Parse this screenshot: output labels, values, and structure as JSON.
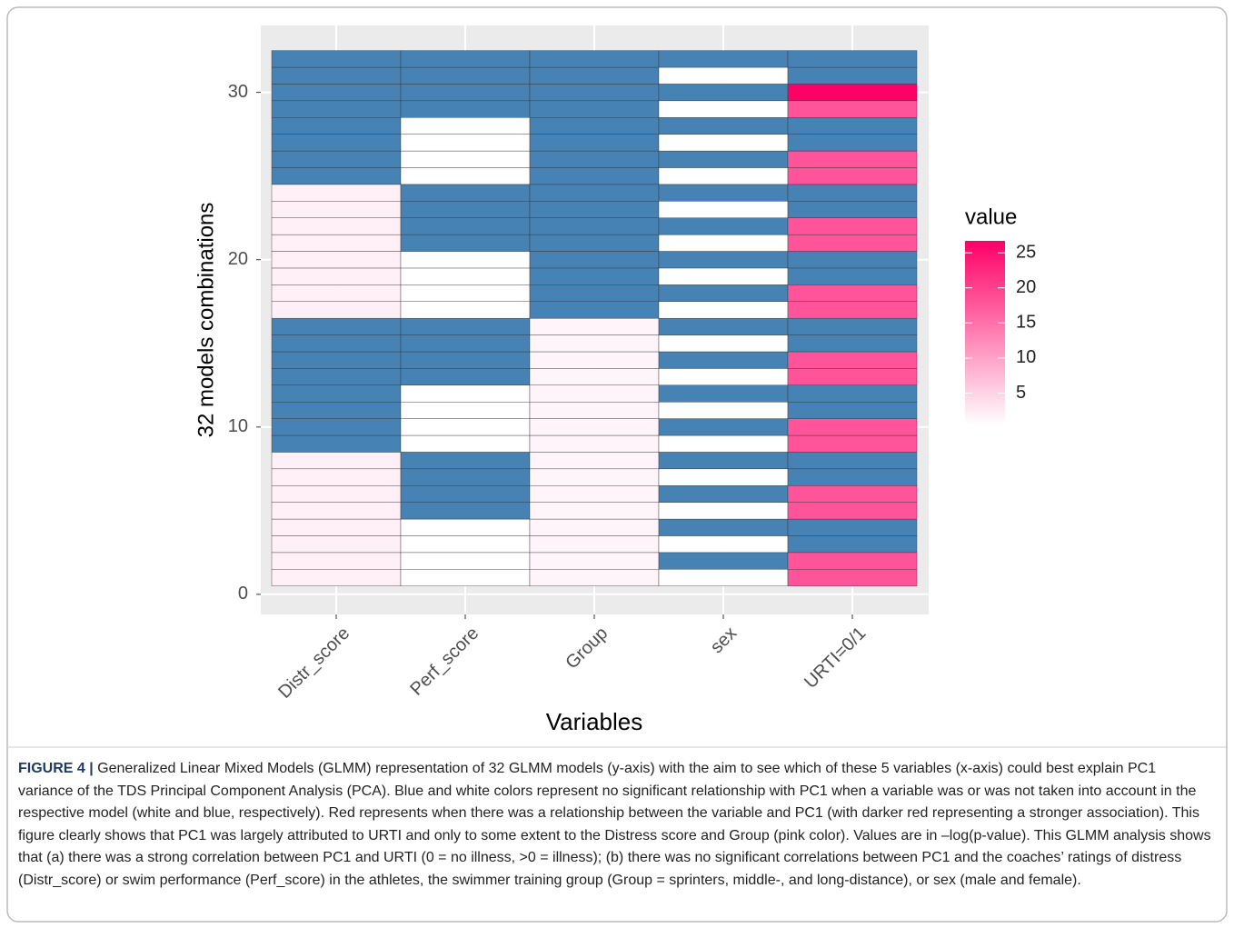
{
  "chart_data": {
    "type": "heatmap",
    "xlabel": "Variables",
    "ylabel": "32 models combinations",
    "categories": [
      "Distr_score",
      "Perf_score",
      "Group",
      "sex",
      "URTI=0/1"
    ],
    "y": [
      1,
      2,
      3,
      4,
      5,
      6,
      7,
      8,
      9,
      10,
      11,
      12,
      13,
      14,
      15,
      16,
      17,
      18,
      19,
      20,
      21,
      22,
      23,
      24,
      25,
      26,
      27,
      28,
      29,
      30,
      31,
      32
    ],
    "values": [
      [
        2,
        0.4,
        1.5,
        0.4,
        18
      ],
      [
        2,
        0.4,
        1.5,
        null,
        18
      ],
      [
        2,
        0.4,
        1.5,
        0.4,
        null
      ],
      [
        2,
        0.4,
        1.5,
        null,
        null
      ],
      [
        2,
        null,
        1.5,
        0.4,
        18
      ],
      [
        2,
        null,
        1.5,
        null,
        18
      ],
      [
        2,
        null,
        1.5,
        0.4,
        null
      ],
      [
        2,
        null,
        1.5,
        null,
        null
      ],
      [
        null,
        0.4,
        1.5,
        0.4,
        18
      ],
      [
        null,
        0.4,
        1.5,
        null,
        18
      ],
      [
        null,
        0.4,
        1.5,
        0.4,
        null
      ],
      [
        null,
        0.4,
        1.5,
        null,
        null
      ],
      [
        null,
        null,
        1.5,
        0.4,
        18
      ],
      [
        null,
        null,
        1.5,
        null,
        18
      ],
      [
        null,
        null,
        1.5,
        0.4,
        null
      ],
      [
        null,
        null,
        1.5,
        null,
        null
      ],
      [
        2,
        0.4,
        null,
        0.4,
        18
      ],
      [
        2,
        0.4,
        null,
        null,
        18
      ],
      [
        2,
        0.4,
        null,
        0.4,
        null
      ],
      [
        2,
        0.4,
        null,
        null,
        null
      ],
      [
        2,
        null,
        null,
        0.4,
        18
      ],
      [
        2,
        null,
        null,
        null,
        18
      ],
      [
        2,
        null,
        null,
        0.4,
        null
      ],
      [
        2,
        null,
        null,
        null,
        null
      ],
      [
        null,
        0.4,
        null,
        0.4,
        18
      ],
      [
        null,
        0.4,
        null,
        null,
        18
      ],
      [
        null,
        0.4,
        null,
        0.4,
        null
      ],
      [
        null,
        0.4,
        null,
        null,
        null
      ],
      [
        null,
        null,
        null,
        0.4,
        18
      ],
      [
        null,
        null,
        null,
        null,
        26.7
      ],
      [
        null,
        null,
        null,
        0.4,
        null
      ],
      [
        null,
        null,
        null,
        null,
        null
      ]
    ],
    "ylim": [
      -1.2,
      34.0
    ],
    "yticks": [
      0,
      10,
      20,
      30
    ],
    "grid": true,
    "low_color": "#ffffff",
    "high_color": "#ff0066",
    "na_color": "#4682b4",
    "legend_title": "value",
    "clim": [
      0.4,
      26.7
    ],
    "cticks": [
      5,
      10,
      15,
      20,
      25
    ],
    "caption": {
      "label": "FIGURE 4 |",
      "text": "Generalized Linear Mixed Models (GLMM) representation of 32 GLMM models (y-axis) with the aim to see which of these 5 variables (x-axis) could best explain PC1 variance of the TDS Principal Component Analysis (PCA). Blue and white colors represent no significant relationship with PC1 when a variable was or was not taken into account in the respective model (white and blue, respectively). Red represents when there was a relationship between the variable and PC1 (with darker red representing a stronger association). This figure clearly shows that PC1 was largely attributed to URTI and only to some extent to the Distress score and Group (pink color). Values are in –log(p-value). This GLMM analysis shows that (a) there was a strong correlation between PC1 and URTI (0 = no illness, >0 = illness); (b) there was no significant correlations between PC1 and the coaches’ ratings of distress (Distr_score) or swim performance (Perf_score) in the athletes, the swimmer training group (Group = sprinters, middle-, and long-distance), or sex (male and female)."
    }
  }
}
